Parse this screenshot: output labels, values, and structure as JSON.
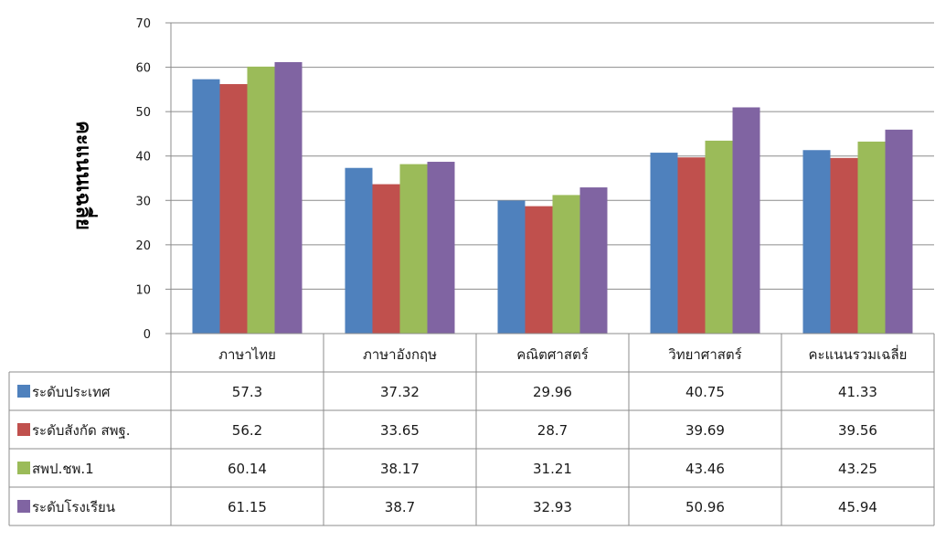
{
  "chart_data": {
    "type": "bar",
    "title": "",
    "xlabel": "",
    "ylabel": "คะแนนเฉลี่ย",
    "ylim": [
      0,
      70
    ],
    "yticks": [
      0,
      10,
      20,
      30,
      40,
      50,
      60,
      70
    ],
    "grid": true,
    "legend": "data-table-left",
    "categories": [
      "ภาษาไทย",
      "ภาษาอังกฤษ",
      "คณิตศาสตร์",
      "วิทยาศาสตร์",
      "คะแนนรวมเฉลี่ย"
    ],
    "series": [
      {
        "name": "ระดับประเทศ",
        "color": "#4F81BD",
        "values": [
          57.3,
          37.32,
          29.96,
          40.75,
          41.33
        ],
        "labels": [
          "57.3",
          "37.32",
          "29.96",
          "40.75",
          "41.33"
        ]
      },
      {
        "name": "ระดับสังกัด สพฐ.",
        "color": "#C0504D",
        "values": [
          56.2,
          33.65,
          28.7,
          39.69,
          39.56
        ],
        "labels": [
          "56.2",
          "33.65",
          "28.7",
          "39.69",
          "39.56"
        ]
      },
      {
        "name": "สพป.ชพ.1",
        "color": "#9BBB59",
        "values": [
          60.14,
          38.17,
          31.21,
          43.46,
          43.25
        ],
        "labels": [
          "60.14",
          "38.17",
          "31.21",
          "43.46",
          "43.25"
        ]
      },
      {
        "name": "ระดับโรงเรียน",
        "color": "#8064A2",
        "values": [
          61.15,
          38.7,
          32.93,
          50.96,
          45.94
        ],
        "labels": [
          "61.15",
          "38.7",
          "32.93",
          "50.96",
          "45.94"
        ]
      }
    ]
  }
}
